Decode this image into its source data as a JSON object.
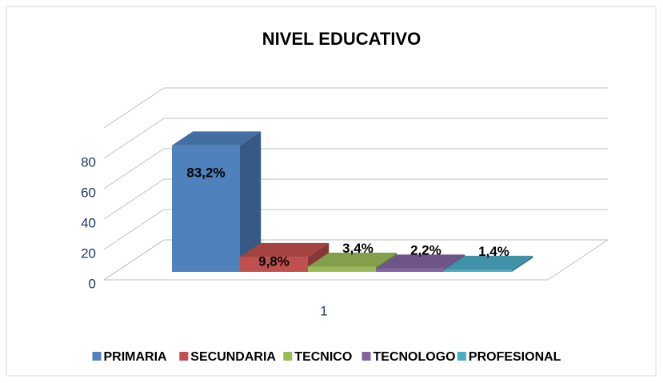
{
  "chart_data": {
    "type": "bar3d",
    "title": "NIVEL EDUCATIVO",
    "categories": [
      "1"
    ],
    "series": [
      {
        "name": "PRIMARIA",
        "color": "#4f81bd",
        "values": [
          83.2
        ],
        "value_labels": [
          "83,2%"
        ]
      },
      {
        "name": "SECUNDARIA",
        "color": "#c0504d",
        "values": [
          9.8
        ],
        "value_labels": [
          "9,8%"
        ]
      },
      {
        "name": "TECNICO",
        "color": "#9bbb59",
        "values": [
          3.4
        ],
        "value_labels": [
          "3,4%"
        ]
      },
      {
        "name": "TECNOLOGO",
        "color": "#8064a2",
        "values": [
          2.2
        ],
        "value_labels": [
          "2,2%"
        ]
      },
      {
        "name": "PROFESIONAL",
        "color": "#4bacc6",
        "values": [
          1.4
        ],
        "value_labels": [
          "1,4%"
        ]
      }
    ],
    "ylim": [
      0,
      100
    ],
    "yticks": [
      0,
      20,
      40,
      60,
      80
    ],
    "grid": true,
    "legend": "bottom"
  }
}
